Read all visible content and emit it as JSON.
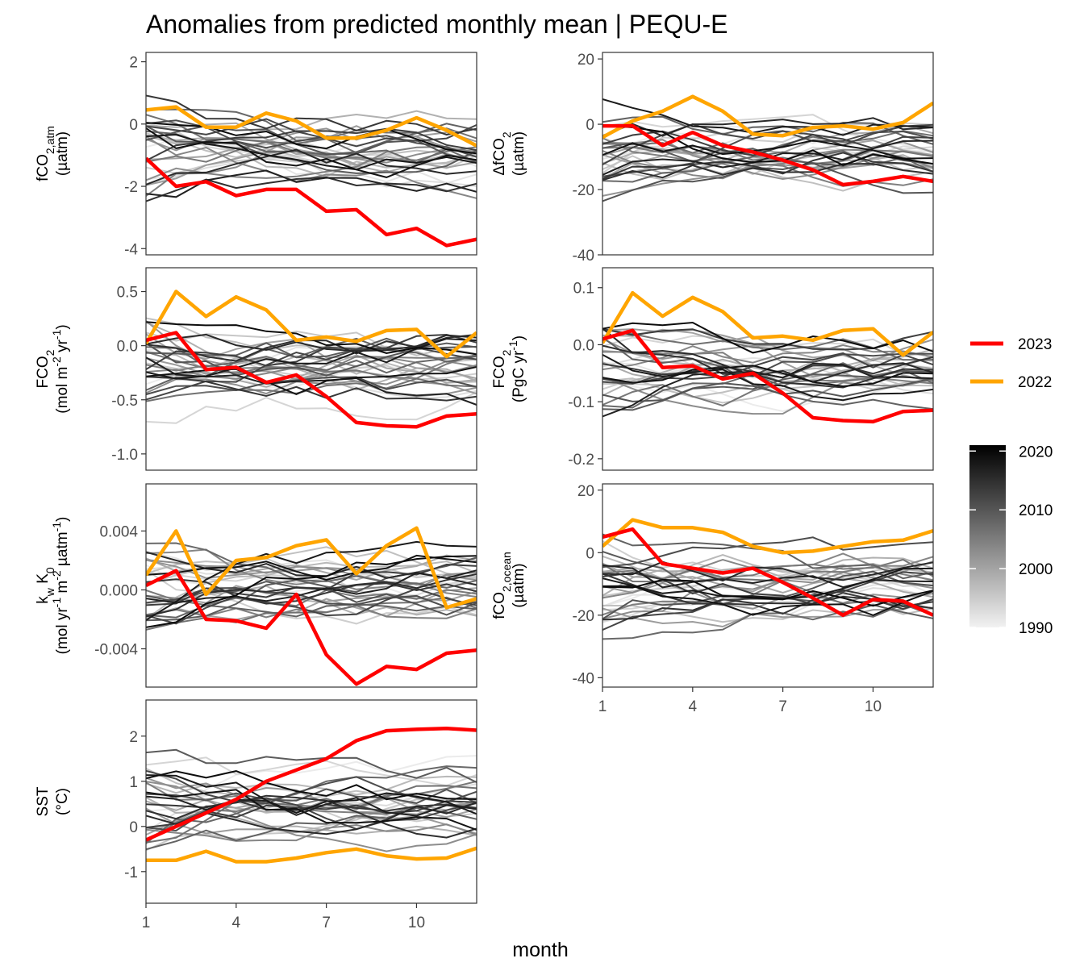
{
  "title": "Anomalies from predicted monthly mean | PEQU-E",
  "xlabel": "month",
  "legend": {
    "series": [
      {
        "label": "2023",
        "color": "#ff0000"
      },
      {
        "label": "2022",
        "color": "#ffa500"
      }
    ],
    "colorbar": {
      "ticks": [
        "2020",
        "2010",
        "2000",
        "1990"
      ],
      "range": [
        1990,
        2021
      ],
      "low_color": "#f2f2f2",
      "high_color": "#000000"
    }
  },
  "chart_data": [
    {
      "type": "line",
      "ylabel_lines": [
        "fCO2,atm",
        "(µatm)"
      ],
      "ylim": [
        -4.2,
        2.3
      ],
      "yticks": [
        2,
        0,
        -2,
        -4
      ],
      "ytick_labels": [
        "2",
        "0",
        "-2",
        "-4"
      ],
      "xlim": [
        1,
        12
      ],
      "xticks": [],
      "x": [
        1,
        2,
        3,
        4,
        5,
        6,
        7,
        8,
        9,
        10,
        11,
        12
      ],
      "series": [
        {
          "values": [
            -1.1,
            -2.0,
            -1.85,
            -2.3,
            -2.1,
            -2.1,
            -2.8,
            -2.75,
            -3.55,
            -3.35,
            -3.9,
            -3.7
          ],
          "color": "#ff0000"
        },
        {
          "values": [
            0.45,
            0.55,
            -0.1,
            -0.1,
            0.35,
            0.1,
            -0.45,
            -0.45,
            -0.2,
            0.2,
            -0.2,
            -0.7
          ],
          "color": "#ffa500"
        }
      ]
    },
    {
      "type": "line",
      "ylabel_lines": [
        "ΔfCO2",
        "(µatm)"
      ],
      "ylim": [
        -40,
        22
      ],
      "yticks": [
        20,
        0,
        -20,
        -40
      ],
      "ytick_labels": [
        "20",
        "0",
        "-20",
        "-40"
      ],
      "xlim": [
        1,
        12
      ],
      "xticks": [],
      "x": [
        1,
        2,
        3,
        4,
        5,
        6,
        7,
        8,
        9,
        10,
        11,
        12
      ],
      "series": [
        {
          "values": [
            -0.5,
            -0.5,
            -6.5,
            -2.5,
            -6.5,
            -8.5,
            -11,
            -14,
            -18.5,
            -17.5,
            -16,
            -17.5
          ],
          "color": "#ff0000"
        },
        {
          "values": [
            -4,
            1,
            4,
            8.5,
            4,
            -3,
            -3.5,
            -1,
            -0.5,
            -1.5,
            0.5,
            6.5
          ],
          "color": "#ffa500"
        }
      ]
    },
    {
      "type": "line",
      "ylabel_lines": [
        "FCO2",
        "(mol m-2 yr-1)"
      ],
      "ylim": [
        -1.15,
        0.72
      ],
      "yticks": [
        0.5,
        0.0,
        -0.5,
        -1.0
      ],
      "ytick_labels": [
        "0.5",
        "0.0",
        "-0.5",
        "-1.0"
      ],
      "xlim": [
        1,
        12
      ],
      "xticks": [],
      "x": [
        1,
        2,
        3,
        4,
        5,
        6,
        7,
        8,
        9,
        10,
        11,
        12
      ],
      "series": [
        {
          "values": [
            0.05,
            0.12,
            -0.22,
            -0.2,
            -0.34,
            -0.27,
            -0.47,
            -0.71,
            -0.74,
            -0.75,
            -0.65,
            -0.63
          ],
          "color": "#ff0000"
        },
        {
          "values": [
            0.02,
            0.5,
            0.27,
            0.45,
            0.33,
            0.05,
            0.08,
            0.04,
            0.14,
            0.15,
            -0.1,
            0.12
          ],
          "color": "#ffa500"
        }
      ]
    },
    {
      "type": "line",
      "ylabel_lines": [
        "FCO2",
        "(PgC yr-1)"
      ],
      "ylim": [
        -0.22,
        0.135
      ],
      "yticks": [
        0.1,
        0.0,
        -0.1,
        -0.2
      ],
      "ytick_labels": [
        "0.1",
        "0.0",
        "-0.1",
        "-0.2"
      ],
      "xlim": [
        1,
        12
      ],
      "xticks": [],
      "x": [
        1,
        2,
        3,
        4,
        5,
        6,
        7,
        8,
        9,
        10,
        11,
        12
      ],
      "series": [
        {
          "values": [
            0.01,
            0.025,
            -0.04,
            -0.037,
            -0.06,
            -0.05,
            -0.085,
            -0.128,
            -0.133,
            -0.135,
            -0.117,
            -0.115
          ],
          "color": "#ff0000"
        },
        {
          "values": [
            0.003,
            0.091,
            0.05,
            0.083,
            0.058,
            0.012,
            0.015,
            0.008,
            0.025,
            0.028,
            -0.018,
            0.022
          ],
          "color": "#ffa500"
        }
      ]
    },
    {
      "type": "line",
      "ylabel_lines": [
        "kw K0",
        "(mol yr-1 m-2 µatm-1)"
      ],
      "ylim": [
        -0.0066,
        0.0072
      ],
      "yticks": [
        0.004,
        0.0,
        -0.004
      ],
      "ytick_labels": [
        "0.004",
        "0.000",
        "-0.004"
      ],
      "xlim": [
        1,
        12
      ],
      "xticks": [],
      "x": [
        1,
        2,
        3,
        4,
        5,
        6,
        7,
        8,
        9,
        10,
        11,
        12
      ],
      "series": [
        {
          "values": [
            0.0003,
            0.0013,
            -0.002,
            -0.0021,
            -0.0026,
            -0.0003,
            -0.0044,
            -0.0064,
            -0.0052,
            -0.0054,
            -0.0043,
            -0.0041
          ],
          "color": "#ff0000"
        },
        {
          "values": [
            0.001,
            0.004,
            -0.0003,
            0.002,
            0.0022,
            0.003,
            0.0034,
            0.0011,
            0.003,
            0.0042,
            -0.0012,
            -0.0006
          ],
          "color": "#ffa500"
        }
      ]
    },
    {
      "type": "line",
      "ylabel_lines": [
        "fCO2,ocean",
        "(µatm)"
      ],
      "ylim": [
        -43,
        22
      ],
      "yticks": [
        20,
        0,
        -20,
        -40
      ],
      "ytick_labels": [
        "20",
        "0",
        "-20",
        "-40"
      ],
      "xlim": [
        1,
        12
      ],
      "xticks": [
        1,
        4,
        7,
        10
      ],
      "x": [
        1,
        2,
        3,
        4,
        5,
        6,
        7,
        8,
        9,
        10,
        11,
        12
      ],
      "series": [
        {
          "values": [
            5,
            7.5,
            -3.5,
            -5,
            -6.5,
            -5,
            -9.5,
            -14.5,
            -20,
            -15,
            -15.5,
            -20
          ],
          "color": "#ff0000"
        },
        {
          "values": [
            2,
            10.5,
            8,
            8,
            6.5,
            2,
            0,
            0.5,
            2,
            3.5,
            4,
            7
          ],
          "color": "#ffa500"
        }
      ]
    },
    {
      "type": "line",
      "ylabel_lines": [
        "SST",
        "(°C)"
      ],
      "ylim": [
        -1.7,
        2.8
      ],
      "yticks": [
        2,
        1,
        0,
        -1
      ],
      "ytick_labels": [
        "2",
        "1",
        "0",
        "-1"
      ],
      "xlim": [
        1,
        12
      ],
      "xticks": [
        1,
        4,
        7,
        10
      ],
      "x": [
        1,
        2,
        3,
        4,
        5,
        6,
        7,
        8,
        9,
        10,
        11,
        12
      ],
      "series": [
        {
          "values": [
            -0.3,
            0.0,
            0.3,
            0.6,
            1.0,
            1.25,
            1.5,
            1.9,
            2.12,
            2.15,
            2.17,
            2.13
          ],
          "color": "#ff0000"
        },
        {
          "values": [
            -0.75,
            -0.75,
            -0.55,
            -0.78,
            -0.78,
            -0.7,
            -0.58,
            -0.5,
            -0.65,
            -0.72,
            -0.7,
            -0.48
          ],
          "color": "#ffa500"
        }
      ]
    }
  ]
}
